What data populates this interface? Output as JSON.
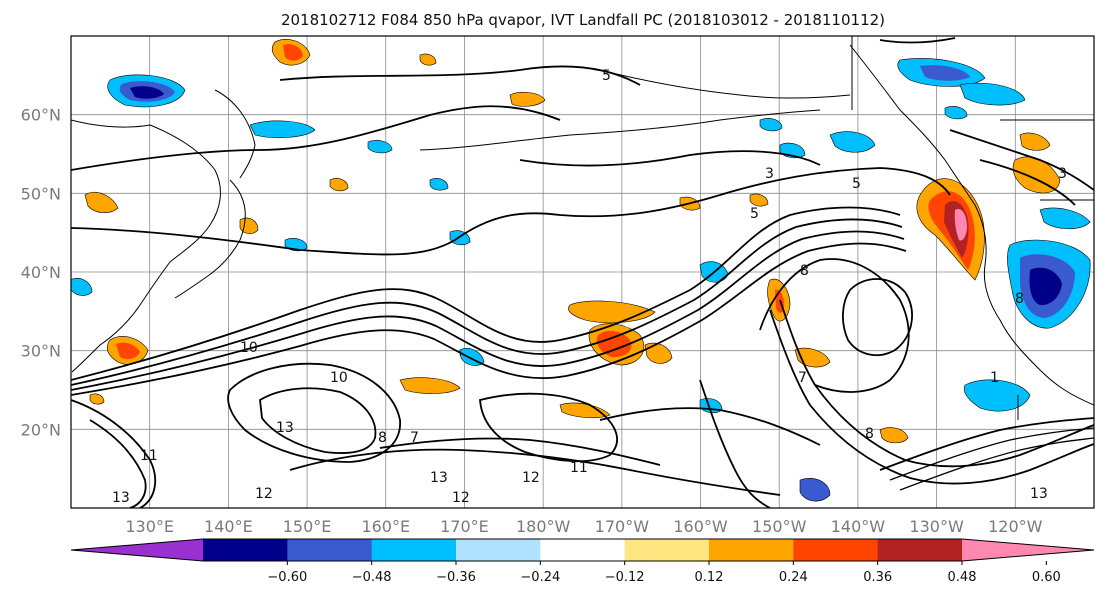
{
  "title": "2018102712 F084 850 hPa qvapor, IVT Landfall PC (2018103012 - 2018110112)",
  "map": {
    "lat_labels": [
      "60°N",
      "50°N",
      "40°N",
      "30°N",
      "20°N"
    ],
    "lon_labels": [
      "130°E",
      "140°E",
      "150°E",
      "160°E",
      "170°E",
      "180°W",
      "170°W",
      "160°W",
      "150°W",
      "140°W",
      "130°W",
      "120°W"
    ],
    "lon_range": [
      120,
      250
    ],
    "lat_range": [
      10,
      70
    ],
    "grid": true
  },
  "colorbar": {
    "orientation": "horizontal",
    "extend": "both",
    "colors": [
      "#9b30d0",
      "#00008b",
      "#3a5bd0",
      "#00bfff",
      "#b0e2ff",
      "#ffffff",
      "#ffe680",
      "#ffa500",
      "#ff4500",
      "#b22222",
      "#ff88b0"
    ],
    "tick_labels": [
      "−0.60",
      "−0.48",
      "−0.36",
      "−0.24",
      "−0.12",
      "0.12",
      "0.24",
      "0.36",
      "0.48",
      "0.60"
    ]
  },
  "contour_labels": [
    {
      "text": "5"
    },
    {
      "text": "5"
    },
    {
      "text": "5"
    },
    {
      "text": "3"
    },
    {
      "text": "3"
    },
    {
      "text": "7"
    },
    {
      "text": "8"
    },
    {
      "text": "8"
    },
    {
      "text": "8"
    },
    {
      "text": "8"
    },
    {
      "text": "10"
    },
    {
      "text": "10"
    },
    {
      "text": "11"
    },
    {
      "text": "11"
    },
    {
      "text": "12"
    },
    {
      "text": "12"
    },
    {
      "text": "12"
    },
    {
      "text": "13"
    },
    {
      "text": "13"
    },
    {
      "text": "13"
    },
    {
      "text": "13"
    },
    {
      "text": "7"
    },
    {
      "text": "1"
    }
  ]
}
